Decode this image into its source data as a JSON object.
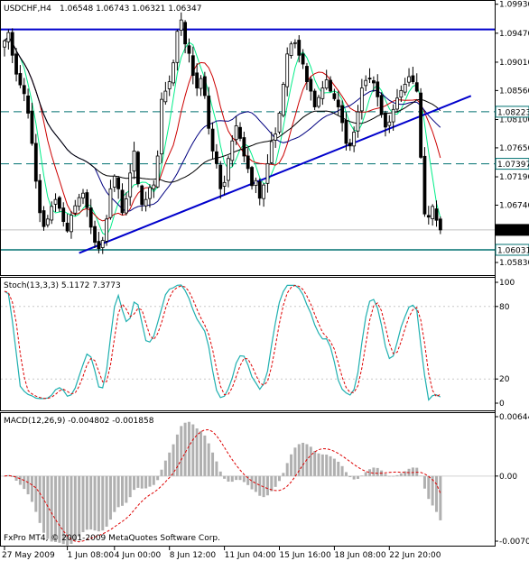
{
  "header": {
    "symbol": "USDCHF,H4",
    "ohlc": "1.06548 1.06743 1.06321 1.06347"
  },
  "indicators": {
    "stoch_label": "Stoch(13,3,3) 5.1172 7.3773",
    "macd_label": "MACD(12,26,9) -0.004802 -0.001858"
  },
  "footer": {
    "copyright": "FxPro MT4, © 2001-2009 MetaQuotes Software Corp."
  },
  "colors": {
    "background": "#ffffff",
    "bull_candle": "#ffffff",
    "bear_candle": "#000000",
    "ma_fast": "#00ee88",
    "ma_mid": "#cc0000",
    "ma_slow": "#000080",
    "ma_long": "#000000",
    "trendline": "#0000cc",
    "level_line": "#007070",
    "stoch_main": "#20b0b0",
    "stoch_signal": "#dd0000",
    "macd_hist": "#b0b0b0",
    "macd_signal": "#dd0000"
  },
  "chart_data": [
    {
      "type": "candlestick",
      "symbol": "USDCHF",
      "timeframe": "H4",
      "ylim": [
        1.0573,
        1.0994
      ],
      "y_ticks": [
        "1.09930",
        "1.09470",
        "1.09010",
        "1.08560",
        "1.08100",
        "1.07650",
        "1.07190",
        "1.06740",
        "1.05830"
      ],
      "level_labels": [
        {
          "value": 1.08223,
          "label": "1.08223",
          "style": "dashed"
        },
        {
          "value": 1.07397,
          "label": "1.07397",
          "style": "dashed"
        },
        {
          "value": 1.06347,
          "label": "1.06347",
          "style": "current"
        },
        {
          "value": 1.06031,
          "label": "1.06031",
          "style": "solid"
        }
      ],
      "resistance": {
        "value": 1.0953
      },
      "trendline": {
        "from": {
          "bar": 19,
          "price": 1.0598
        },
        "to": {
          "bar": 105,
          "price": 1.0813
        }
      },
      "close": [
        1.0935,
        1.0948,
        1.0912,
        1.0882,
        1.0865,
        1.0851,
        1.082,
        1.0772,
        1.0712,
        1.0662,
        1.064,
        1.0652,
        1.0672,
        1.0683,
        1.0669,
        1.0648,
        1.0633,
        1.0658,
        1.0673,
        1.0686,
        1.0693,
        1.067,
        1.0639,
        1.0615,
        1.0605,
        1.0618,
        1.0652,
        1.07,
        1.072,
        1.07,
        1.0662,
        1.0684,
        1.0725,
        1.076,
        1.0708,
        1.0675,
        1.0683,
        1.0702,
        1.0706,
        1.0752,
        1.0842,
        1.0855,
        1.087,
        1.09,
        1.095,
        1.0968,
        1.093,
        1.0915,
        1.088,
        1.086,
        1.0875,
        1.0848,
        1.0796,
        1.076,
        1.074,
        1.07,
        1.071,
        1.0748,
        1.0776,
        1.08,
        1.078,
        1.0752,
        1.0732,
        1.0705,
        1.0713,
        1.0685,
        1.0706,
        1.074,
        1.0775,
        1.0787,
        1.082,
        1.0866,
        1.0914,
        1.093,
        1.0932,
        1.0912,
        1.0898,
        1.087,
        1.0855,
        1.083,
        1.0845,
        1.086,
        1.0873,
        1.0855,
        1.0843,
        1.083,
        1.0805,
        1.0772,
        1.0768,
        1.079,
        1.0822,
        1.086,
        1.0872,
        1.0875,
        1.0868,
        1.0846,
        1.0818,
        1.0798,
        1.0806,
        1.0826,
        1.0844,
        1.0856,
        1.0866,
        1.0878,
        1.087,
        1.0855,
        1.075,
        1.066,
        1.0655,
        1.0672,
        1.065,
        1.06347
      ],
      "ma_periods_shown": 4
    },
    {
      "type": "line",
      "name": "Stoch(13,3,3)",
      "ylim": [
        0,
        100
      ],
      "y_ticks": [
        100,
        80,
        20,
        0
      ],
      "main_value": 5.1172,
      "signal_value": 7.3773
    },
    {
      "type": "bar",
      "name": "MACD(12,26,9)",
      "ylim": [
        -0.00706,
        0.00644
      ],
      "y_ticks": [
        "0.00644",
        "0.00",
        "-0.00706"
      ],
      "macd_value": -0.004802,
      "signal_value": -0.001858
    }
  ],
  "x_axis": {
    "labels": [
      {
        "bar": 0,
        "text": "27 May 2009"
      },
      {
        "bar": 16,
        "text": "1 Jun 08:00"
      },
      {
        "bar": 28,
        "text": "4 Jun 00:00"
      },
      {
        "bar": 42,
        "text": "8 Jun 12:00"
      },
      {
        "bar": 56,
        "text": "11 Jun 04:00"
      },
      {
        "bar": 70,
        "text": "15 Jun 16:00"
      },
      {
        "bar": 84,
        "text": "18 Jun 08:00"
      },
      {
        "bar": 98,
        "text": "22 Jun 20:00"
      }
    ]
  }
}
